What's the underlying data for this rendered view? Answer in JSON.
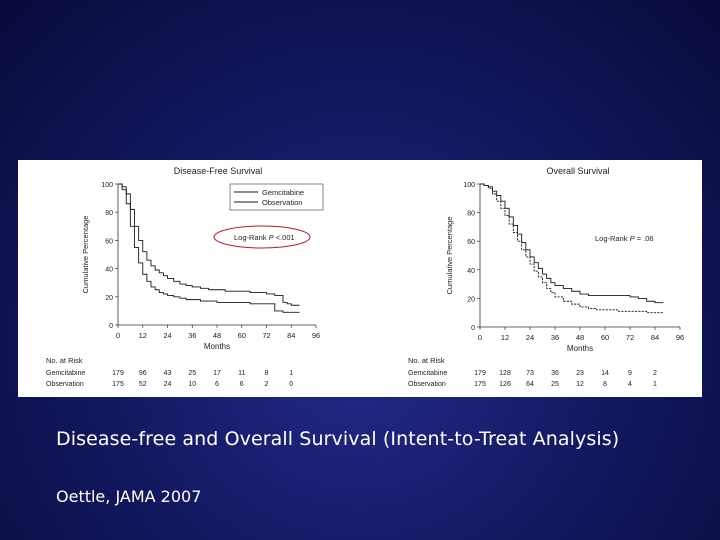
{
  "slide": {
    "caption": "Disease-free and Overall Survival (Intent-to-Treat Analysis)",
    "citation": "Oettle, JAMA 2007",
    "background_color": "#141a63"
  },
  "chart_data": [
    {
      "type": "line",
      "title": "Disease-Free Survival",
      "xlabel": "Months",
      "ylabel": "Cumulative Percentage",
      "xlim": [
        0,
        96
      ],
      "ylim": [
        0,
        100
      ],
      "xticks": [
        0,
        12,
        24,
        36,
        48,
        60,
        72,
        84,
        96
      ],
      "yticks": [
        0,
        20,
        40,
        60,
        80,
        100
      ],
      "legend": [
        "Gemcitabine",
        "Observation"
      ],
      "legend_position": "top-right",
      "annotation": {
        "prefix": "Log-Rank ",
        "p": "P",
        "suffix": " <.001",
        "circled": true
      },
      "series": [
        {
          "name": "Gemcitabine",
          "x": [
            0,
            2,
            4,
            6,
            8,
            10,
            12,
            14,
            16,
            18,
            20,
            22,
            24,
            27,
            30,
            33,
            36,
            40,
            44,
            48,
            52,
            56,
            60,
            64,
            68,
            72,
            76,
            80,
            82,
            84,
            86,
            88
          ],
          "y": [
            100,
            98,
            93,
            82,
            70,
            60,
            52,
            46,
            42,
            39,
            37,
            35,
            33,
            31,
            29,
            28,
            27,
            26,
            25,
            25,
            24,
            24,
            24,
            23,
            23,
            22,
            21,
            16,
            15,
            14,
            14,
            14
          ]
        },
        {
          "name": "Observation",
          "x": [
            0,
            2,
            4,
            6,
            8,
            10,
            12,
            14,
            16,
            18,
            20,
            22,
            24,
            27,
            30,
            33,
            36,
            40,
            44,
            48,
            52,
            56,
            60,
            64,
            68,
            72,
            76,
            80,
            84,
            88
          ],
          "y": [
            100,
            96,
            86,
            70,
            55,
            44,
            36,
            31,
            27,
            25,
            23,
            22,
            21,
            20,
            19,
            18,
            18,
            17,
            17,
            16,
            16,
            16,
            16,
            15,
            15,
            15,
            10,
            9,
            9,
            9
          ]
        }
      ],
      "risk_table": {
        "header": "No. at Risk",
        "months": [
          0,
          12,
          24,
          36,
          48,
          60,
          72,
          84
        ],
        "rows": [
          {
            "label": "Gemcitabine",
            "values": [
              "179",
              "96",
              "43",
              "25",
              "17",
              "11",
              "8",
              "1"
            ]
          },
          {
            "label": "Observation",
            "values": [
              "175",
              "52",
              "24",
              "10",
              "6",
              "6",
              "2",
              "0"
            ]
          }
        ]
      }
    },
    {
      "type": "line",
      "title": "Overall Survival",
      "xlabel": "Months",
      "ylabel": "Cumulative Percentage",
      "xlim": [
        0,
        96
      ],
      "ylim": [
        0,
        100
      ],
      "xticks": [
        0,
        12,
        24,
        36,
        48,
        60,
        72,
        84,
        96
      ],
      "yticks": [
        0,
        20,
        40,
        60,
        80,
        100
      ],
      "annotation": {
        "prefix": "Log-Rank ",
        "p": "P",
        "suffix": " = .06",
        "circled": false
      },
      "series": [
        {
          "name": "Gemcitabine",
          "x": [
            0,
            2,
            4,
            6,
            8,
            10,
            12,
            14,
            16,
            18,
            20,
            22,
            24,
            26,
            28,
            30,
            32,
            34,
            36,
            40,
            44,
            48,
            52,
            56,
            60,
            66,
            72,
            76,
            80,
            84,
            88
          ],
          "y": [
            100,
            99,
            98,
            95,
            92,
            88,
            83,
            77,
            71,
            65,
            59,
            54,
            49,
            45,
            41,
            37,
            34,
            31,
            29,
            27,
            25,
            23,
            22,
            22,
            22,
            22,
            21,
            20,
            18,
            17,
            17
          ]
        },
        {
          "name": "Observation",
          "x": [
            0,
            2,
            4,
            6,
            8,
            10,
            12,
            14,
            16,
            18,
            20,
            22,
            24,
            26,
            28,
            30,
            32,
            34,
            36,
            40,
            44,
            48,
            52,
            56,
            60,
            66,
            72,
            76,
            80,
            84,
            88
          ],
          "y": [
            100,
            99,
            97,
            93,
            88,
            83,
            78,
            72,
            66,
            60,
            54,
            49,
            44,
            39,
            35,
            31,
            27,
            24,
            21,
            18,
            16,
            14,
            13,
            12,
            12,
            11,
            11,
            11,
            10,
            10,
            10
          ]
        }
      ],
      "risk_table": {
        "header": "No. at Risk",
        "months": [
          0,
          12,
          24,
          36,
          48,
          60,
          72,
          84
        ],
        "rows": [
          {
            "label": "Gemcitabine",
            "values": [
              "179",
              "128",
              "73",
              "36",
              "23",
              "14",
              "9",
              "2"
            ]
          },
          {
            "label": "Observation",
            "values": [
              "175",
              "126",
              "64",
              "25",
              "12",
              "8",
              "4",
              "1"
            ]
          }
        ]
      }
    }
  ]
}
